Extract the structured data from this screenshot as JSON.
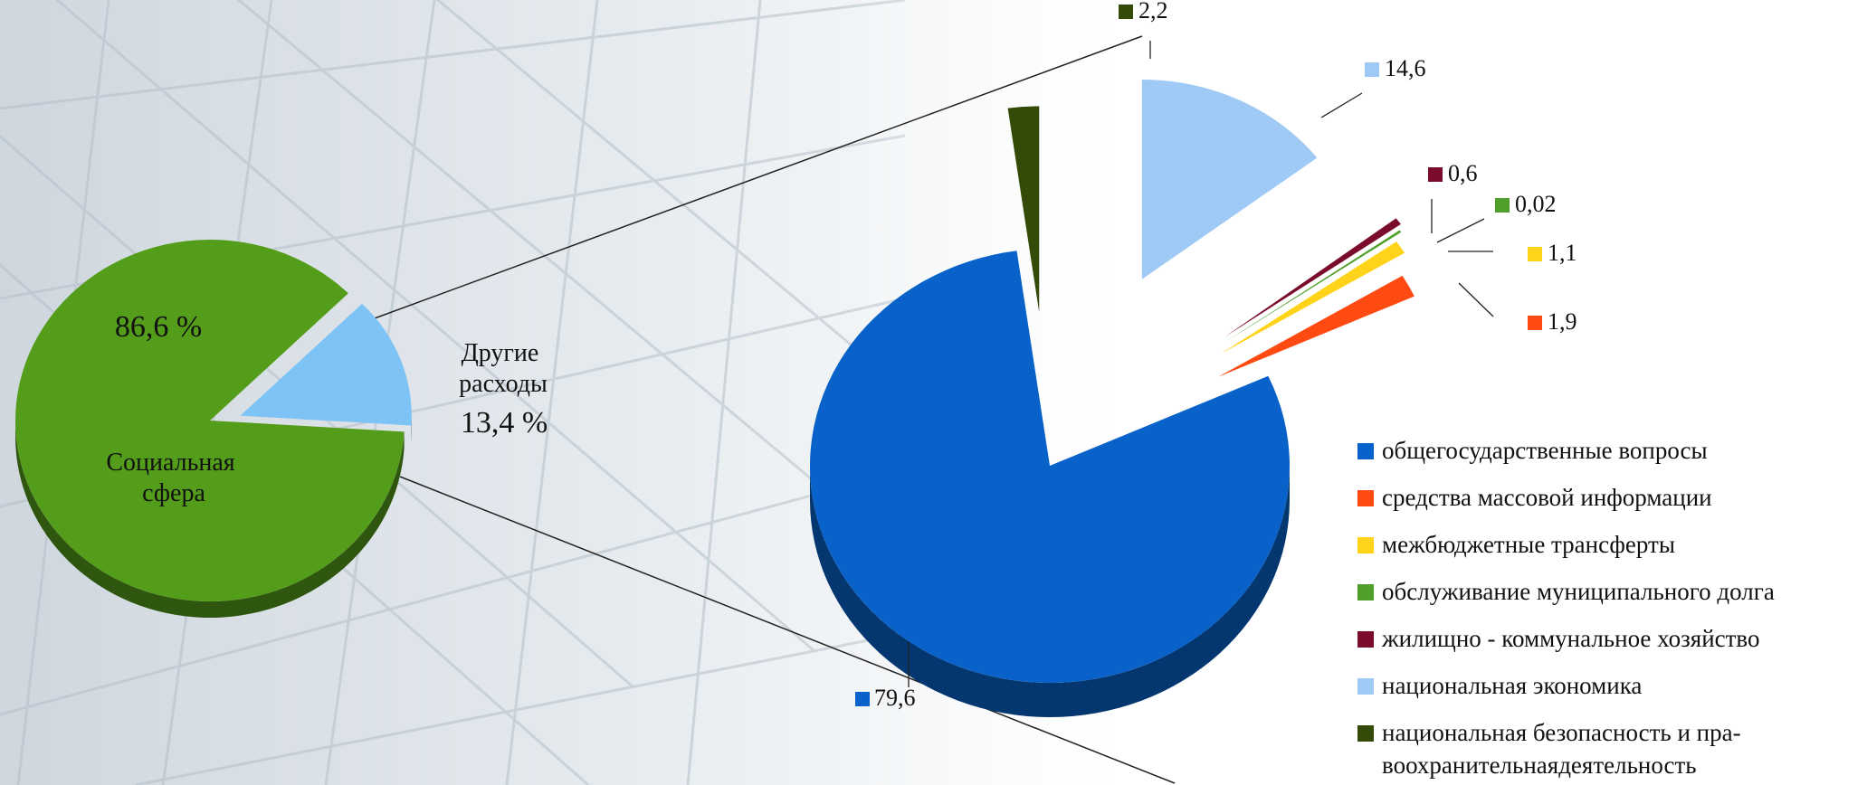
{
  "chart_data": [
    {
      "type": "pie",
      "slices": [
        {
          "label": "Социальная сфера",
          "value": 86.6,
          "value_text": "86,6 %",
          "color": "#539d1a"
        },
        {
          "label": "Другие расходы",
          "value": 13.4,
          "value_text": "13,4 %",
          "color": "#7ec3f5"
        }
      ]
    },
    {
      "type": "pie",
      "slices": [
        {
          "label": "общегосударственные вопросы",
          "value": 79.6,
          "value_text": "79,6",
          "color": "#0862c9"
        },
        {
          "label": "средства массовой информации",
          "value": 1.9,
          "value_text": "1,9",
          "color": "#ff4a12"
        },
        {
          "label": "межбюджетные трансферты",
          "value": 1.1,
          "value_text": "1,1",
          "color": "#ffd31a"
        },
        {
          "label": "обслуживание муниципального долга",
          "value": 0.02,
          "value_text": "0,02",
          "color": "#4f9f2a"
        },
        {
          "label": "жилищно - коммунальное хозяйство",
          "value": 0.6,
          "value_text": "0,6",
          "color": "#7a0b2a"
        },
        {
          "label": "национальная экономика",
          "value": 14.6,
          "value_text": "14,6",
          "color": "#9fcaf5"
        },
        {
          "label": "национальная безопасность и пра-",
          "label_line2": "воохранительнаядеятельность",
          "value": 2.2,
          "value_text": "2,2",
          "color": "#344a08"
        }
      ]
    }
  ]
}
